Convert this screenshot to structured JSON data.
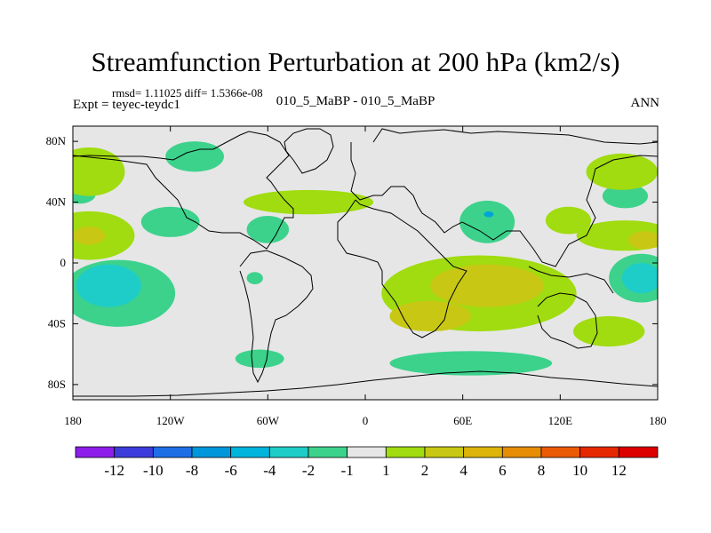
{
  "title": "Streamfunction Perturbation at 200 hPa (km2/s)",
  "stats": "rmsd= 1.11025 diff= 1.5366e-08",
  "left_label": "Expt = teyec-teydc1",
  "center_label": "010_5_MaBP - 010_5_MaBP",
  "right_label": "ANN",
  "colors": {
    "background": "#e6e6e6",
    "coastline": "#000000",
    "neg1": "#3cd28c",
    "neg2": "#1ecdc8",
    "neg4": "#00a5d7",
    "pos1": "#a0dc0f",
    "pos2": "#c8c814",
    "pos4": "#dcb40a"
  },
  "chart_data": {
    "type": "heatmap",
    "title": "Streamfunction Perturbation at 200 hPa (km2/s)",
    "xlabel": "",
    "ylabel": "",
    "xlim": [
      -180,
      180
    ],
    "ylim": [
      -90,
      90
    ],
    "x_ticks": [
      {
        "value": -180,
        "label": "180"
      },
      {
        "value": -120,
        "label": "120W"
      },
      {
        "value": -60,
        "label": "60W"
      },
      {
        "value": 0,
        "label": "0"
      },
      {
        "value": 60,
        "label": "60E"
      },
      {
        "value": 120,
        "label": "120E"
      },
      {
        "value": 180,
        "label": "180"
      }
    ],
    "y_ticks": [
      {
        "value": 80,
        "label": "80N"
      },
      {
        "value": 40,
        "label": "40N"
      },
      {
        "value": 0,
        "label": "0"
      },
      {
        "value": -40,
        "label": "40S"
      },
      {
        "value": -80,
        "label": "80S"
      }
    ],
    "colorbar": {
      "levels": [
        "-12",
        "-10",
        "-8",
        "-6",
        "-4",
        "-2",
        "-1",
        "1",
        "2",
        "4",
        "6",
        "8",
        "10",
        "12"
      ],
      "colors": [
        "#8c1eeb",
        "#3c3cdc",
        "#1e6ee6",
        "#0096dc",
        "#00b4dc",
        "#1ecdc8",
        "#3cd28c",
        "#e6e6e6",
        "#a0dc0f",
        "#c8c814",
        "#dcb40a",
        "#e68c05",
        "#eb5a05",
        "#e62800",
        "#dc0000"
      ]
    },
    "contour_regions": [
      {
        "level": "-1",
        "lon": -105,
        "lat": 70,
        "rx": 18,
        "ry": 10
      },
      {
        "level": "-1",
        "lon": -120,
        "lat": 27,
        "rx": 18,
        "ry": 10
      },
      {
        "level": "-1",
        "lon": -60,
        "lat": 22,
        "rx": 13,
        "ry": 9
      },
      {
        "level": "-1",
        "lon": -68,
        "lat": -10,
        "rx": 5,
        "ry": 4
      },
      {
        "level": "-1",
        "lon": -65,
        "lat": -63,
        "rx": 15,
        "ry": 6
      },
      {
        "level": "-1",
        "lon": -176,
        "lat": 45,
        "rx": 10,
        "ry": 6
      },
      {
        "level": "-1",
        "lon": -152,
        "lat": -20,
        "rx": 35,
        "ry": 22
      },
      {
        "level": "-1",
        "lon": 170,
        "lat": -10,
        "rx": 20,
        "ry": 16
      },
      {
        "level": "-1",
        "lon": 75,
        "lat": 27,
        "rx": 17,
        "ry": 14
      },
      {
        "level": "-1",
        "lon": 160,
        "lat": 44,
        "rx": 14,
        "ry": 8
      },
      {
        "level": "-1",
        "lon": 65,
        "lat": -66,
        "rx": 50,
        "ry": 8
      },
      {
        "level": "-2",
        "lon": -158,
        "lat": -15,
        "rx": 20,
        "ry": 14
      },
      {
        "level": "-2",
        "lon": 170,
        "lat": -10,
        "rx": 12,
        "ry": 10
      },
      {
        "level": "-4",
        "lon": 76,
        "lat": 32,
        "rx": 3,
        "ry": 2
      },
      {
        "level": "1",
        "lon": -170,
        "lat": 60,
        "rx": 22,
        "ry": 16
      },
      {
        "level": "1",
        "lon": -170,
        "lat": 18,
        "rx": 28,
        "ry": 16
      },
      {
        "level": "1",
        "lon": -35,
        "lat": 40,
        "rx": 40,
        "ry": 8
      },
      {
        "level": "1",
        "lon": 70,
        "lat": -20,
        "rx": 60,
        "ry": 25
      },
      {
        "level": "1",
        "lon": 125,
        "lat": 28,
        "rx": 14,
        "ry": 9
      },
      {
        "level": "1",
        "lon": 158,
        "lat": 60,
        "rx": 22,
        "ry": 12
      },
      {
        "level": "1",
        "lon": 160,
        "lat": 18,
        "rx": 30,
        "ry": 10
      },
      {
        "level": "1",
        "lon": 150,
        "lat": -45,
        "rx": 22,
        "ry": 10
      },
      {
        "level": "2",
        "lon": 75,
        "lat": -15,
        "rx": 35,
        "ry": 14
      },
      {
        "level": "2",
        "lon": 40,
        "lat": -35,
        "rx": 25,
        "ry": 10
      },
      {
        "level": "2",
        "lon": -170,
        "lat": 18,
        "rx": 10,
        "ry": 6
      },
      {
        "level": "2",
        "lon": 172,
        "lat": 15,
        "rx": 10,
        "ry": 6
      }
    ]
  }
}
